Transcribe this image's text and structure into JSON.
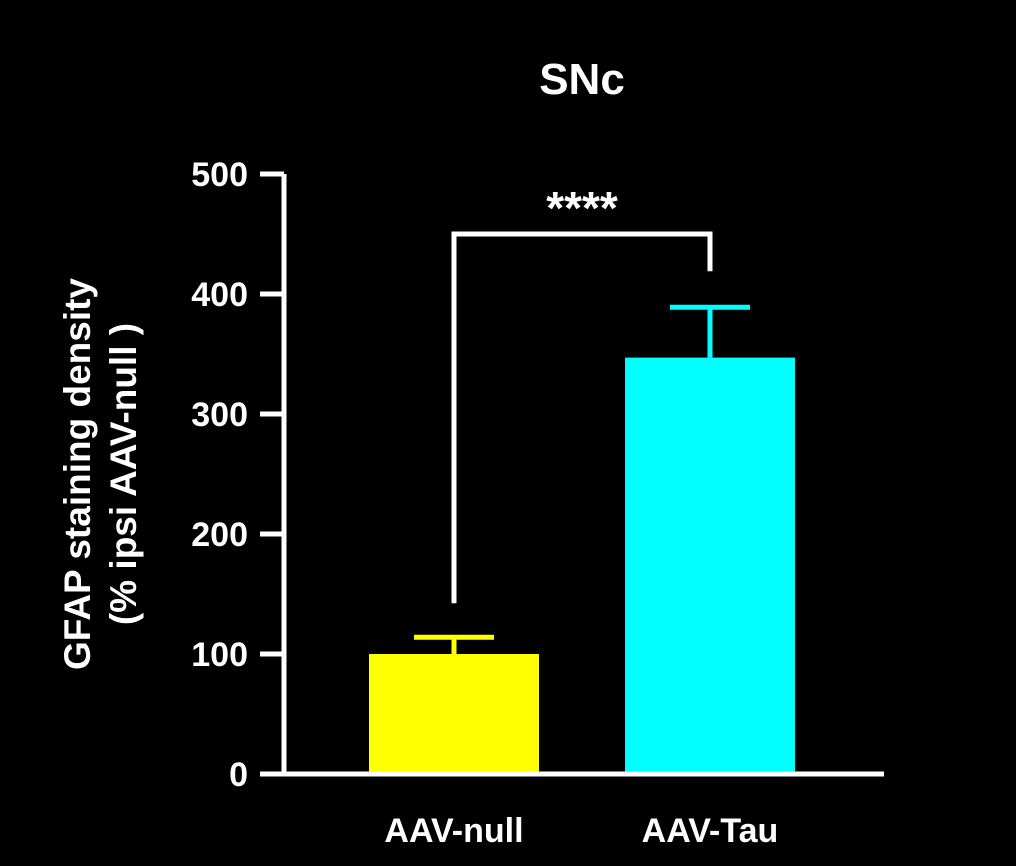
{
  "chart_data": {
    "type": "bar",
    "title": "SNc",
    "ylabel_line1": "GFAP staining density",
    "ylabel_line2": "(% ipsi AAV-null )",
    "xlabel": "",
    "ylim": [
      0,
      500
    ],
    "yticks": [
      "0",
      "100",
      "200",
      "300",
      "400",
      "500"
    ],
    "yticks_values": [
      0,
      100,
      200,
      300,
      400,
      500
    ],
    "categories": [
      "AAV-null",
      "AAV-Tau"
    ],
    "values": [
      100,
      347
    ],
    "errors": [
      14,
      42
    ],
    "colors": [
      "#ffff00",
      "#00ffff"
    ],
    "background": "#000000",
    "significance": {
      "label": "****",
      "between": [
        "AAV-null",
        "AAV-Tau"
      ]
    }
  }
}
